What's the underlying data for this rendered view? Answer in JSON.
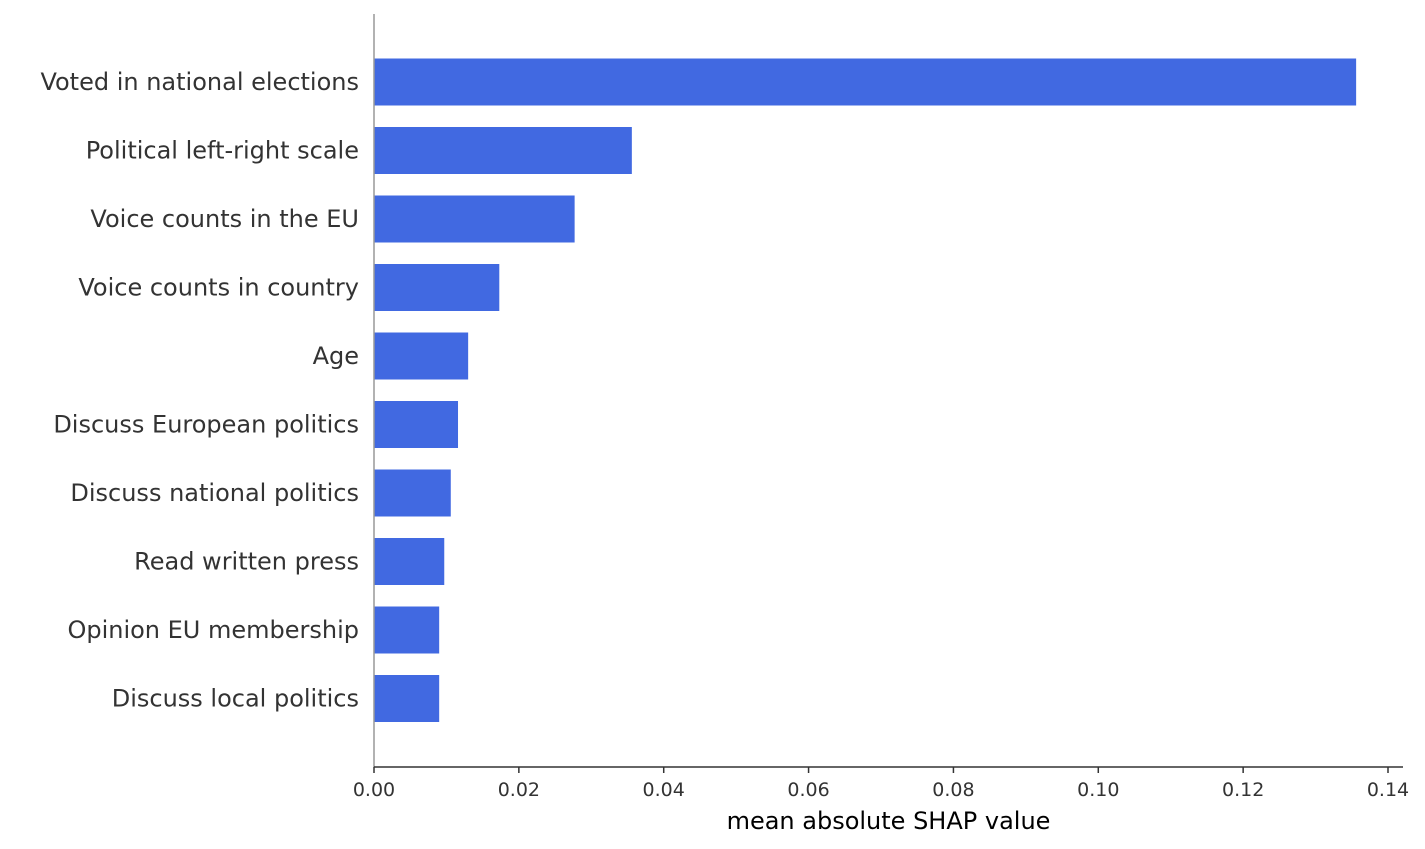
{
  "chart_data": {
    "type": "bar",
    "orientation": "horizontal",
    "categories": [
      "Voted in national elections",
      "Political left-right scale",
      "Voice counts in the EU",
      "Voice counts in country",
      "Age",
      "Discuss European politics",
      "Discuss national politics",
      "Read written press",
      "Opinion EU membership",
      "Discuss local politics"
    ],
    "values": [
      0.1356,
      0.0356,
      0.0277,
      0.0173,
      0.013,
      0.0116,
      0.0106,
      0.0097,
      0.009,
      0.009
    ],
    "xlabel": "mean absolute SHAP value",
    "ylabel": "",
    "xlim": [
      0.0,
      0.14
    ],
    "xticks": [
      "0.00",
      "0.02",
      "0.04",
      "0.06",
      "0.08",
      "0.10",
      "0.12",
      "0.14"
    ],
    "grid": false,
    "legend": "none",
    "bar_color": "#4169e1",
    "axis_color": "#333333"
  }
}
